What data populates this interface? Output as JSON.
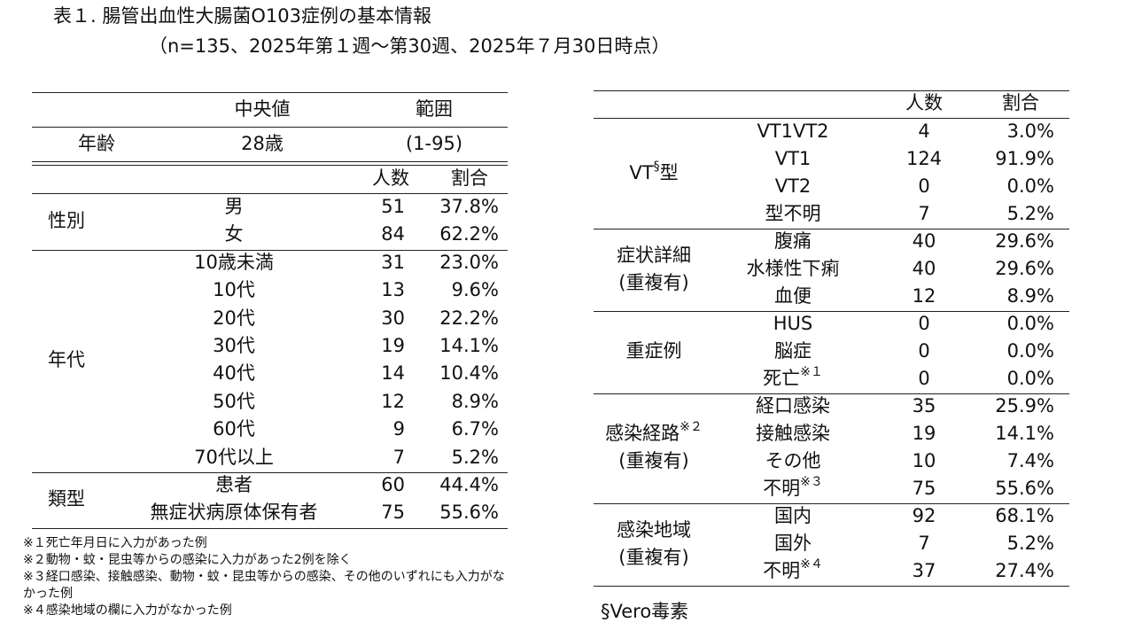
{
  "title": "表１. 腸管出血性大腸菌O103症例の基本情報",
  "subtitle": "（n=135、2025年第１週～第30週、2025年７月30日時点）",
  "left": {
    "age_header": {
      "median": "中央値",
      "range": "範囲"
    },
    "age": {
      "label": "年齢",
      "median": "28歳",
      "range": "(1-95)"
    },
    "count_header": {
      "count": "人数",
      "ratio": "割合"
    },
    "groups": [
      {
        "label": "性別",
        "rows": [
          {
            "label": "男",
            "count": "51",
            "ratio": "37.8%"
          },
          {
            "label": "女",
            "count": "84",
            "ratio": "62.2%"
          }
        ]
      },
      {
        "label": "年代",
        "rows": [
          {
            "label": "10歳未満",
            "count": "31",
            "ratio": "23.0%"
          },
          {
            "label": "10代",
            "count": "13",
            "ratio": "9.6%"
          },
          {
            "label": "20代",
            "count": "30",
            "ratio": "22.2%"
          },
          {
            "label": "30代",
            "count": "19",
            "ratio": "14.1%"
          },
          {
            "label": "40代",
            "count": "14",
            "ratio": "10.4%"
          },
          {
            "label": "50代",
            "count": "12",
            "ratio": "8.9%"
          },
          {
            "label": "60代",
            "count": "9",
            "ratio": "6.7%"
          },
          {
            "label": "70代以上",
            "count": "7",
            "ratio": "5.2%"
          }
        ]
      },
      {
        "label": "類型",
        "rows": [
          {
            "label": "患者",
            "count": "60",
            "ratio": "44.4%"
          },
          {
            "label": "無症状病原体保有者",
            "count": "75",
            "ratio": "55.6%"
          }
        ]
      }
    ]
  },
  "notes": [
    "※１死亡年月日に入力があった例",
    "※２動物・蚊・昆虫等からの感染に入力があった2例を除く",
    "※３経口感染、接触感染、動物・蚊・昆虫等からの感染、その他のいずれにも入力がな",
    "かった例",
    "※４感染地域の欄に入力がなかった例"
  ],
  "right": {
    "header": {
      "count": "人数",
      "ratio": "割合"
    },
    "groups": [
      {
        "label": "VT",
        "label_sup": "§",
        "label_tail": "型",
        "label2": "",
        "rows": [
          {
            "label": "VT1VT2",
            "count": "4",
            "ratio": "3.0%"
          },
          {
            "label": "VT1",
            "count": "124",
            "ratio": "91.9%"
          },
          {
            "label": "VT2",
            "count": "0",
            "ratio": "0.0%"
          },
          {
            "label": "型不明",
            "count": "7",
            "ratio": "5.2%"
          }
        ]
      },
      {
        "label": "症状詳細",
        "label_sup": "",
        "label_tail": "",
        "label2": "(重複有)",
        "rows": [
          {
            "label": "腹痛",
            "count": "40",
            "ratio": "29.6%"
          },
          {
            "label": "水様性下痢",
            "count": "40",
            "ratio": "29.6%"
          },
          {
            "label": "血便",
            "count": "12",
            "ratio": "8.9%"
          }
        ]
      },
      {
        "label": "重症例",
        "label_sup": "",
        "label_tail": "",
        "label2": "",
        "rows": [
          {
            "label": "HUS",
            "sup": "",
            "count": "0",
            "ratio": "0.0%"
          },
          {
            "label": "脳症",
            "sup": "",
            "count": "0",
            "ratio": "0.0%"
          },
          {
            "label": "死亡",
            "sup": "※１",
            "count": "0",
            "ratio": "0.0%"
          }
        ]
      },
      {
        "label": "感染経路",
        "label_sup": "※２",
        "label_tail": "",
        "label2": "(重複有)",
        "rows": [
          {
            "label": "経口感染",
            "sup": "",
            "count": "35",
            "ratio": "25.9%"
          },
          {
            "label": "接触感染",
            "sup": "",
            "count": "19",
            "ratio": "14.1%"
          },
          {
            "label": "その他",
            "sup": "",
            "count": "10",
            "ratio": "7.4%"
          },
          {
            "label": "不明",
            "sup": "※３",
            "count": "75",
            "ratio": "55.6%"
          }
        ]
      },
      {
        "label": "感染地域",
        "label_sup": "",
        "label_tail": "",
        "label2": "(重複有)",
        "rows": [
          {
            "label": "国内",
            "sup": "",
            "count": "92",
            "ratio": "68.1%"
          },
          {
            "label": "国外",
            "sup": "",
            "count": "7",
            "ratio": "5.2%"
          },
          {
            "label": "不明",
            "sup": "※４",
            "count": "37",
            "ratio": "27.4%"
          }
        ]
      }
    ]
  },
  "footnote_vero": "§Vero毒素"
}
